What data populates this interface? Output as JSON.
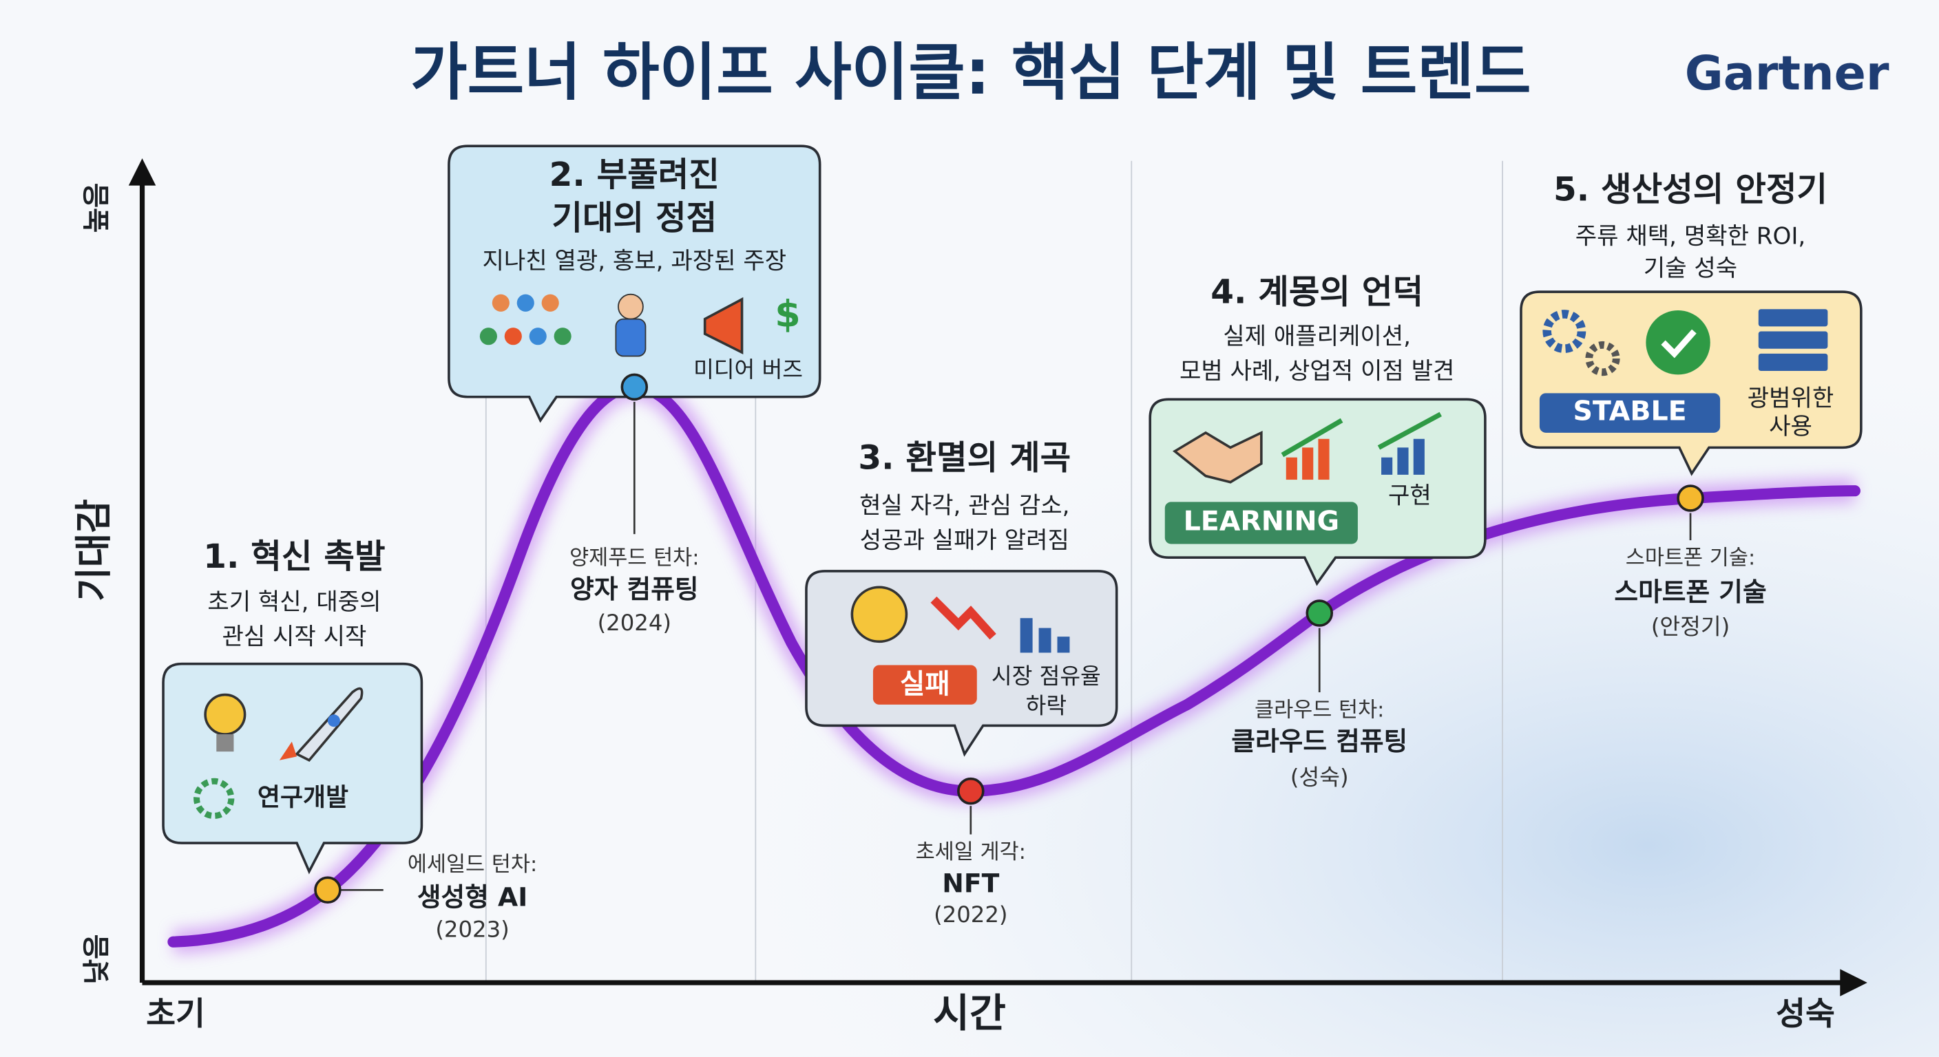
{
  "header": {
    "title": "가트너 하이프 사이클: 핵심 단계 및 트렌드",
    "logo": "Gartner"
  },
  "axes": {
    "y_label": "기대감",
    "y_high": "높음",
    "y_low": "낮음",
    "x_label": "시간",
    "x_start": "초기",
    "x_end": "성숙"
  },
  "phases": [
    {
      "title": [
        "1. 혁신 촉발"
      ],
      "description": [
        "초기 혁신, 대중의",
        "관심 시작 시작"
      ],
      "tags": [
        "연구개발"
      ]
    },
    {
      "title": [
        "2. 부풀려진",
        "기대의 정점"
      ],
      "description": [
        "지나친 열광, 홍보, 과장된 주장"
      ],
      "tags": [
        "미디어 버즈"
      ]
    },
    {
      "title": [
        "3. 환멸의 계곡"
      ],
      "description": [
        "현실 자각, 관심 감소,",
        "성공과 실패가 알려짐"
      ],
      "tags": [
        "실패",
        "시장 점유율",
        "하락"
      ]
    },
    {
      "title": [
        "4. 계몽의 언덕"
      ],
      "description": [
        "실제 애플리케이션,",
        "모범 사례, 상업적 이점 발견"
      ],
      "tags": [
        "LEARNING",
        "구현"
      ]
    },
    {
      "title": [
        "5. 생산성의 안정기"
      ],
      "description": [
        "주류 채택, 명확한 ROI,",
        "기술 성숙"
      ],
      "tags": [
        "STABLE",
        "광범위한",
        "사용"
      ]
    }
  ],
  "points": [
    {
      "label": "에세일드 턴차:",
      "name": "생성형 AI",
      "year": "(2023)"
    },
    {
      "label": "양제푸드 턴차:",
      "name": "양자 컴퓨팅",
      "year": "(2024)"
    },
    {
      "label": "초세일 게각:",
      "name": "NFT",
      "year": "(2022)"
    },
    {
      "label": "클라우드 턴차:",
      "name": "클라우드 컴퓨팅",
      "year": "(성숙)"
    },
    {
      "label": "스마트폰 기술:",
      "name": "스마트폰 기술",
      "year": "(안정기)"
    }
  ]
}
